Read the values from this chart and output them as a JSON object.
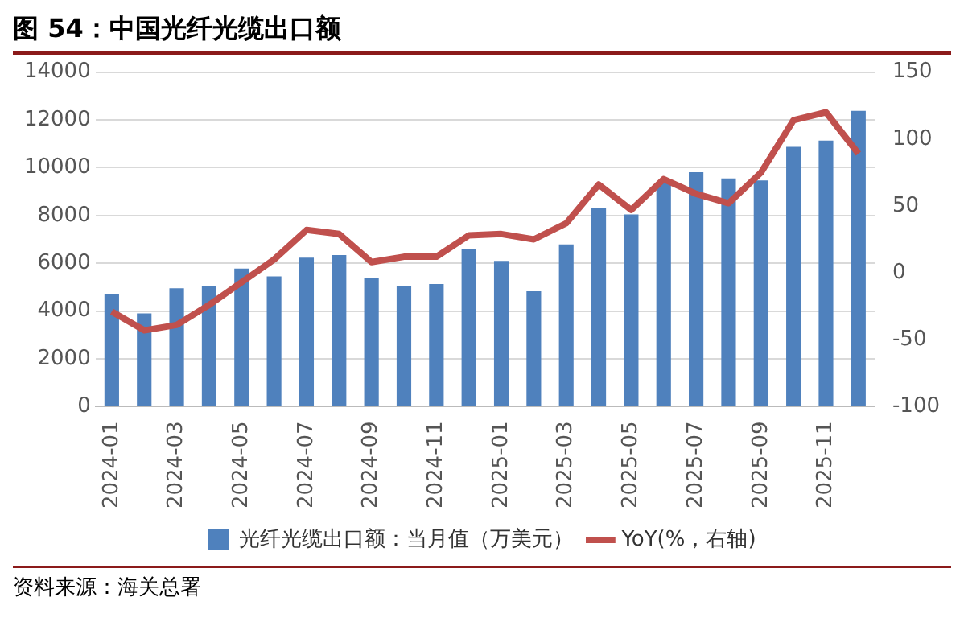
{
  "chart_data": {
    "type": "bar",
    "title": "图 54：中国光纤光缆出口额",
    "categories": [
      "2024-01",
      null,
      "2024-03",
      null,
      "2024-05",
      null,
      "2024-07",
      null,
      "2024-09",
      null,
      "2024-11",
      null,
      "2025-01",
      null,
      "2025-03",
      null,
      "2025-05",
      null,
      "2025-07",
      null,
      "2025-09",
      null,
      "2025-11",
      null
    ],
    "series": [
      {
        "name": "光纤光缆出口额：当月值（万美元）",
        "color": "#4f81bd",
        "values": [
          4700,
          3900,
          4950,
          5050,
          5780,
          5450,
          6230,
          6340,
          5400,
          5050,
          5130,
          6600,
          6100,
          4830,
          6790,
          8300,
          8040,
          9360,
          9810,
          9550,
          9470,
          10870,
          11130,
          12380
        ]
      },
      {
        "name": "YoY(%，右轴)",
        "type": "line",
        "axis": "y2",
        "color": "#c0504d",
        "values": [
          -29,
          -43,
          -39,
          -24,
          -7,
          10,
          32,
          29,
          8,
          12,
          12,
          28,
          29,
          25,
          37,
          66,
          47,
          70,
          59,
          52,
          75,
          114,
          120,
          89
        ]
      }
    ],
    "ylim": [
      0,
      14000
    ],
    "yticks": [
      0,
      2000,
      4000,
      6000,
      8000,
      10000,
      12000,
      14000
    ],
    "y2lim": [
      -100,
      150
    ],
    "y2ticks": [
      -100,
      -50,
      0,
      50,
      100,
      150
    ],
    "grid": "y",
    "legend": "bottom",
    "marker": "none",
    "line_style": "solid",
    "annotations": [
      "资料来源：海关总署"
    ]
  }
}
